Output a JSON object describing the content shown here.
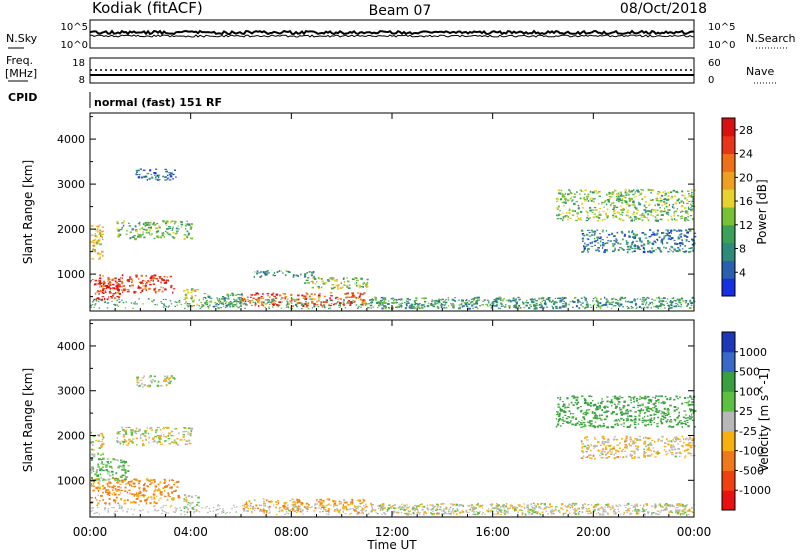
{
  "header": {
    "station": "Kodiak (fitACF)",
    "beam": "Beam 07",
    "date": "08/Oct/2018"
  },
  "nsky_panel": {
    "left_label": "N.Sky",
    "right_label": "N.Search",
    "left_ticks": [
      "10^5",
      "10^0"
    ],
    "right_ticks": [
      "10^5",
      "10^0"
    ]
  },
  "freq_panel": {
    "left_label_1": "Freq.",
    "left_label_2": "[MHz]",
    "right_label": "Nave",
    "left_ticks": [
      "18",
      "8"
    ],
    "right_ticks": [
      "60",
      "0"
    ]
  },
  "cpid": {
    "label": "CPID",
    "value": "normal (fast) 151 RF"
  },
  "chart_data": [
    {
      "type": "heatmap",
      "title": "",
      "xlabel": "",
      "ylabel": "Slant Range [km]",
      "x_ticks": [
        "00:00",
        "04:00",
        "08:00",
        "12:00",
        "16:00",
        "20:00",
        "00:00"
      ],
      "y_ticks": [
        "1000",
        "2000",
        "3000",
        "4000"
      ],
      "ylim": [
        180,
        4580
      ],
      "colorbar": {
        "label": "Power [dB]",
        "ticks": [
          "4",
          "8",
          "12",
          "16",
          "20",
          "24",
          "28"
        ],
        "range": [
          0,
          30
        ]
      },
      "regions": [
        {
          "t": [
            0.0,
            1.3
          ],
          "r": [
            450,
            900
          ],
          "value": 27
        },
        {
          "t": [
            0.3,
            3.3
          ],
          "r": [
            600,
            1000
          ],
          "value": 25
        },
        {
          "t": [
            0.0,
            0.5
          ],
          "r": [
            1300,
            2100
          ],
          "value": 18
        },
        {
          "t": [
            1.0,
            4.0
          ],
          "r": [
            1800,
            2200
          ],
          "value": 12
        },
        {
          "t": [
            1.8,
            3.4
          ],
          "r": [
            3100,
            3350
          ],
          "value": 6
        },
        {
          "t": [
            3.7,
            4.3
          ],
          "r": [
            300,
            700
          ],
          "value": 16
        },
        {
          "t": [
            4.5,
            6.0
          ],
          "r": [
            250,
            600
          ],
          "value": 10
        },
        {
          "t": [
            6.0,
            11.0
          ],
          "r": [
            300,
            600
          ],
          "value": 24
        },
        {
          "t": [
            8.5,
            11.0
          ],
          "r": [
            700,
            950
          ],
          "value": 14
        },
        {
          "t": [
            6.5,
            9.0
          ],
          "r": [
            950,
            1100
          ],
          "value": 8
        },
        {
          "t": [
            11.0,
            24.0
          ],
          "r": [
            250,
            500
          ],
          "value": 9
        },
        {
          "t": [
            18.5,
            24.0
          ],
          "r": [
            2200,
            2900
          ],
          "value": 13
        },
        {
          "t": [
            19.5,
            24.0
          ],
          "r": [
            1500,
            2000
          ],
          "value": 7
        }
      ]
    },
    {
      "type": "heatmap",
      "title": "",
      "xlabel": "Time UT",
      "ylabel": "Slant Range [km]",
      "x_ticks": [
        "00:00",
        "04:00",
        "08:00",
        "12:00",
        "16:00",
        "20:00",
        "00:00"
      ],
      "y_ticks": [
        "1000",
        "2000",
        "3000",
        "4000"
      ],
      "ylim": [
        180,
        4580
      ],
      "colorbar": {
        "label": "Velocity [m s^-1]",
        "ticks": [
          "1000",
          "500",
          "100",
          "25",
          "-25",
          "-100",
          "-500",
          "-1000"
        ]
      },
      "regions": [
        {
          "t": [
            0.0,
            3.5
          ],
          "r": [
            500,
            1050
          ],
          "value": -120
        },
        {
          "t": [
            0.0,
            1.5
          ],
          "r": [
            1000,
            1500
          ],
          "value": 80
        },
        {
          "t": [
            0.0,
            0.5
          ],
          "r": [
            1500,
            2100
          ],
          "value": 0
        },
        {
          "t": [
            1.0,
            4.0
          ],
          "r": [
            1800,
            2200
          ],
          "value": 0
        },
        {
          "t": [
            1.8,
            3.4
          ],
          "r": [
            3100,
            3350
          ],
          "value": 0
        },
        {
          "t": [
            3.7,
            4.3
          ],
          "r": [
            300,
            700
          ],
          "value": 0
        },
        {
          "t": [
            6.0,
            11.0
          ],
          "r": [
            300,
            600
          ],
          "value": -70
        },
        {
          "t": [
            11.0,
            24.0
          ],
          "r": [
            250,
            500
          ],
          "value": 0
        },
        {
          "t": [
            18.5,
            24.0
          ],
          "r": [
            2200,
            2900
          ],
          "value": 150
        },
        {
          "t": [
            19.5,
            24.0
          ],
          "r": [
            1500,
            2000
          ],
          "value": -40
        }
      ]
    }
  ]
}
